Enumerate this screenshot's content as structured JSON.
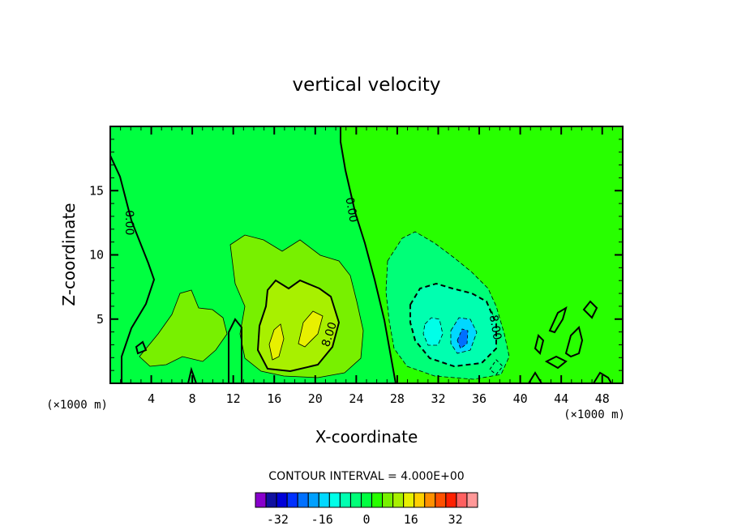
{
  "chart_data": {
    "type": "heatmap",
    "title": "vertical velocity",
    "xlabel": "X-coordinate",
    "ylabel": "Z-coordinate",
    "x_unit": "(×1000 m)",
    "y_unit": "(×1000 m)",
    "xlim": [
      0,
      50
    ],
    "ylim": [
      0,
      20
    ],
    "x_ticks": [
      4,
      8,
      12,
      16,
      20,
      24,
      28,
      32,
      36,
      40,
      44,
      48
    ],
    "y_ticks": [
      5,
      10,
      15
    ],
    "contour_interval_text": "CONTOUR INTERVAL = 4.000E+00",
    "contour_labels": [
      {
        "text": "0.00",
        "x": 1.8,
        "y": 12.5
      },
      {
        "text": "0.00",
        "x": 23.5,
        "y": 13.5
      },
      {
        "text": "8.00",
        "x": 21.4,
        "y": 3.8
      },
      {
        "text": "-8.00",
        "x": 37.5,
        "y": 4.5
      }
    ],
    "field_features": [
      {
        "type": "updraft",
        "center_x": 18.5,
        "center_z": 3.5,
        "peak": 20
      },
      {
        "type": "updraft",
        "center_x": 9,
        "center_z": 3.5,
        "peak": 4
      },
      {
        "type": "downdraft",
        "center_x": 33.5,
        "center_z": 4,
        "peak": -20
      }
    ],
    "colorbar": {
      "tick_labels": [
        "-32",
        "-16",
        "0",
        "16",
        "32"
      ],
      "tick_values": [
        -32,
        -16,
        0,
        16,
        32
      ],
      "levels": [
        -40,
        -36,
        -32,
        -28,
        -24,
        -20,
        -16,
        -12,
        -8,
        -4,
        0,
        4,
        8,
        12,
        16,
        20,
        24,
        28,
        32,
        36,
        40
      ],
      "colors": [
        "#8800cc",
        "#1010a0",
        "#0000d8",
        "#0030ff",
        "#0070ff",
        "#00a0ff",
        "#00d8ff",
        "#00ffe8",
        "#00ffb0",
        "#00ff78",
        "#00ff40",
        "#28ff00",
        "#78f000",
        "#a8f000",
        "#e8f000",
        "#ffd000",
        "#ff9000",
        "#ff5000",
        "#ff2000",
        "#ff6060",
        "#ff9898"
      ]
    }
  }
}
